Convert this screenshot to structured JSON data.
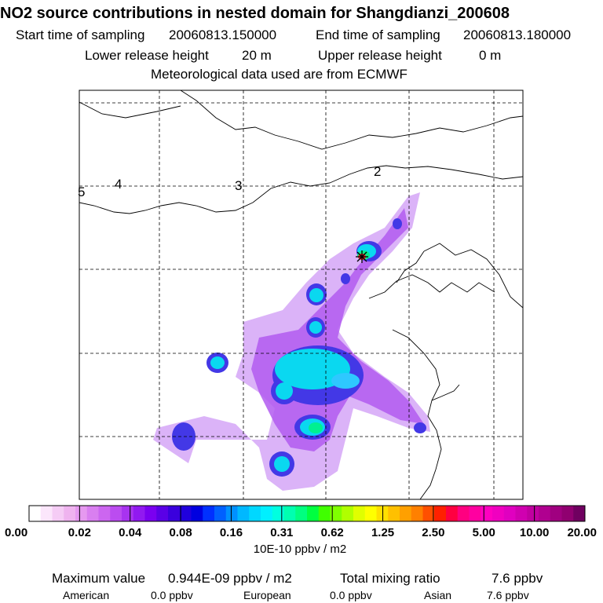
{
  "header": {
    "title": "NO2 source contributions in nested domain for Shangdianzi_200608",
    "start_label": "Start time of sampling",
    "start_value": "20060813.150000",
    "end_label": "End time of sampling",
    "end_value": "20060813.180000",
    "lower_label": "Lower release height",
    "lower_value": "20 m",
    "upper_label": "Upper release height",
    "upper_value": "0 m",
    "met_text": "Meteorological data used are from ECMWF"
  },
  "map": {
    "region_labels": [
      "5",
      "4",
      "3",
      "2"
    ]
  },
  "legend": {
    "ticks": [
      "0.00",
      "0.02",
      "0.04",
      "0.08",
      "0.16",
      "0.31",
      "0.62",
      "1.25",
      "2.50",
      "5.00",
      "10.00",
      "20.00"
    ],
    "units": "10E-10 ppbv / m2",
    "colors": [
      "#ffffff",
      "#fbe6fb",
      "#f5ccf5",
      "#efb3ef",
      "#e699f0",
      "#d97ff0",
      "#cc66f0",
      "#bb4cf0",
      "#a833f0",
      "#9119f0",
      "#7a00f0",
      "#5a00e6",
      "#3a00dd",
      "#2000dd",
      "#0000e0",
      "#0030ff",
      "#0060ff",
      "#0090ff",
      "#00b8ff",
      "#00d8ff",
      "#00f0ff",
      "#00ffe0",
      "#00ffb0",
      "#00ff80",
      "#00ff40",
      "#40ff00",
      "#80ff00",
      "#b0ff00",
      "#e0ff00",
      "#ffff00",
      "#ffe000",
      "#ffc000",
      "#ffa000",
      "#ff8000",
      "#ff5000",
      "#ff2000",
      "#ff0040",
      "#ff0080",
      "#ff00a0",
      "#ff00c0",
      "#f000c0",
      "#e000c0",
      "#d000b0",
      "#c000a0",
      "#b00090",
      "#a00080",
      "#900070",
      "#700060"
    ]
  },
  "footer": {
    "max_label": "Maximum value",
    "max_value": "0.944E-09 ppbv / m2",
    "total_label": "Total mixing ratio",
    "total_value": "7.6 ppbv",
    "american_label": "American",
    "american_value": "0.0 ppbv",
    "european_label": "European",
    "european_value": "0.0 ppbv",
    "asian_label": "Asian",
    "asian_value": "7.6 ppbv"
  }
}
